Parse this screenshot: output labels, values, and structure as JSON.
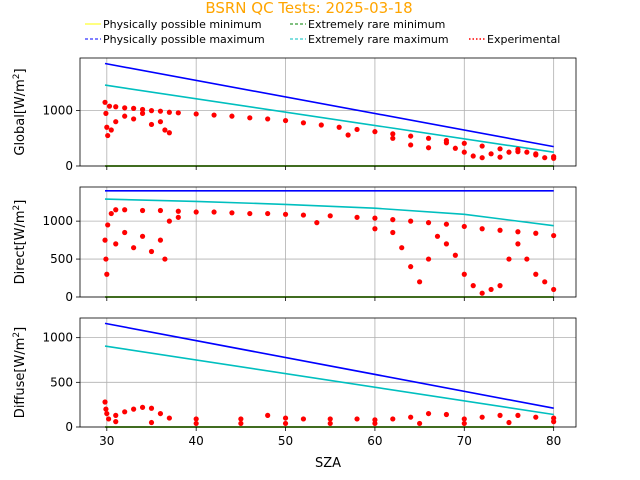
{
  "figure": {
    "title": "BSRN QC Tests: 2025-03-18",
    "title_color": "#FFA500",
    "xlabel": "SZA"
  },
  "legend": [
    {
      "name": "Physically possible minimum",
      "color": "#FFFF00",
      "style": "solid"
    },
    {
      "name": "Extremely rare minimum",
      "color": "#008000",
      "style": "dashed"
    },
    {
      "name": "Physically possible maximum",
      "color": "#0000FF",
      "style": "dashed"
    },
    {
      "name": "Extremely rare maximum",
      "color": "#00BFBF",
      "style": "dashed"
    },
    {
      "name": "Experimental",
      "color": "#FF0000",
      "style": "dotted"
    }
  ],
  "chart_data": [
    {
      "type": "line",
      "ylabel_text": "Global",
      "ylabel_unit": "[W/m",
      "ylabel_sup": "2",
      "ylabel_end": "]",
      "xlim": [
        27,
        82.5
      ],
      "ylim": [
        0,
        1950
      ],
      "yticks": [
        0,
        1000
      ],
      "xticks": [
        30,
        40,
        50,
        60,
        70,
        80
      ],
      "grid": true,
      "series": [
        {
          "name": "Physically possible minimum",
          "color": "#FFFF00",
          "points": [
            [
              29.8,
              0
            ],
            [
              80,
              0
            ]
          ]
        },
        {
          "name": "Extremely rare minimum",
          "color": "#008000",
          "points": [
            [
              29.8,
              0
            ],
            [
              80,
              0
            ]
          ]
        },
        {
          "name": "Physically possible maximum",
          "color": "#0000FF",
          "points": [
            [
              29.8,
              1850
            ],
            [
              80,
              350
            ]
          ]
        },
        {
          "name": "Extremely rare maximum",
          "color": "#00BFBF",
          "points": [
            [
              29.8,
              1460
            ],
            [
              80,
              250
            ]
          ]
        },
        {
          "name": "Experimental",
          "color": "#FF0000",
          "kind": "scatter",
          "points": [
            [
              29.8,
              1150
            ],
            [
              29.9,
              950
            ],
            [
              30.0,
              700
            ],
            [
              30.1,
              550
            ],
            [
              30.3,
              1080
            ],
            [
              31,
              1070
            ],
            [
              32,
              1050
            ],
            [
              33,
              1040
            ],
            [
              34,
              1020
            ],
            [
              35,
              1000
            ],
            [
              36,
              990
            ],
            [
              37,
              970
            ],
            [
              38,
              960
            ],
            [
              40,
              940
            ],
            [
              42,
              920
            ],
            [
              44,
              900
            ],
            [
              46,
              870
            ],
            [
              48,
              850
            ],
            [
              50,
              820
            ],
            [
              52,
              780
            ],
            [
              54,
              740
            ],
            [
              56,
              700
            ],
            [
              58,
              660
            ],
            [
              60,
              620
            ],
            [
              62,
              580
            ],
            [
              64,
              540
            ],
            [
              66,
              500
            ],
            [
              68,
              460
            ],
            [
              70,
              410
            ],
            [
              72,
              360
            ],
            [
              74,
              310
            ],
            [
              76,
              260
            ],
            [
              78,
              220
            ],
            [
              80,
              170
            ],
            [
              30.5,
              650
            ],
            [
              31,
              800
            ],
            [
              32,
              900
            ],
            [
              33,
              850
            ],
            [
              34,
              950
            ],
            [
              35,
              750
            ],
            [
              36,
              800
            ],
            [
              36.5,
              650
            ],
            [
              37,
              600
            ],
            [
              57,
              560
            ],
            [
              62,
              500
            ],
            [
              64,
              380
            ],
            [
              66,
              330
            ],
            [
              68,
              420
            ],
            [
              69,
              320
            ],
            [
              70,
              250
            ],
            [
              71,
              180
            ],
            [
              72,
              150
            ],
            [
              73,
              220
            ],
            [
              74,
              160
            ],
            [
              75,
              250
            ],
            [
              76,
              300
            ],
            [
              77,
              250
            ],
            [
              78,
              200
            ],
            [
              79,
              150
            ],
            [
              80,
              140
            ]
          ]
        }
      ]
    },
    {
      "type": "line",
      "ylabel_text": "Direct",
      "ylabel_unit": "[W/m",
      "ylabel_sup": "2",
      "ylabel_end": "]",
      "xlim": [
        27,
        82.5
      ],
      "ylim": [
        0,
        1450
      ],
      "yticks": [
        0,
        500,
        1000
      ],
      "xticks": [
        30,
        40,
        50,
        60,
        70,
        80
      ],
      "grid": true,
      "series": [
        {
          "name": "Physically possible minimum",
          "color": "#FFFF00",
          "points": [
            [
              29.8,
              0
            ],
            [
              80,
              0
            ]
          ]
        },
        {
          "name": "Extremely rare minimum",
          "color": "#008000",
          "points": [
            [
              29.8,
              0
            ],
            [
              80,
              0
            ]
          ]
        },
        {
          "name": "Physically possible maximum",
          "color": "#0000FF",
          "points": [
            [
              29.8,
              1400
            ],
            [
              80,
              1400
            ]
          ]
        },
        {
          "name": "Extremely rare maximum",
          "color": "#00BFBF",
          "points": [
            [
              29.8,
              1290
            ],
            [
              40,
              1260
            ],
            [
              50,
              1220
            ],
            [
              60,
              1170
            ],
            [
              70,
              1090
            ],
            [
              80,
              940
            ]
          ]
        },
        {
          "name": "Experimental",
          "color": "#FF0000",
          "kind": "scatter",
          "points": [
            [
              29.8,
              750
            ],
            [
              29.9,
              500
            ],
            [
              30.0,
              300
            ],
            [
              30.1,
              950
            ],
            [
              30.5,
              1100
            ],
            [
              31,
              1150
            ],
            [
              32,
              1150
            ],
            [
              34,
              1140
            ],
            [
              36,
              1140
            ],
            [
              38,
              1130
            ],
            [
              40,
              1120
            ],
            [
              42,
              1120
            ],
            [
              44,
              1110
            ],
            [
              46,
              1100
            ],
            [
              48,
              1100
            ],
            [
              50,
              1090
            ],
            [
              52,
              1080
            ],
            [
              53.5,
              980
            ],
            [
              55,
              1070
            ],
            [
              58,
              1050
            ],
            [
              60,
              1040
            ],
            [
              62,
              1020
            ],
            [
              64,
              1000
            ],
            [
              66,
              980
            ],
            [
              68,
              960
            ],
            [
              70,
              930
            ],
            [
              72,
              900
            ],
            [
              74,
              880
            ],
            [
              76,
              860
            ],
            [
              78,
              840
            ],
            [
              80,
              810
            ],
            [
              31,
              700
            ],
            [
              32,
              850
            ],
            [
              33,
              650
            ],
            [
              34,
              800
            ],
            [
              35,
              600
            ],
            [
              36,
              750
            ],
            [
              36.5,
              500
            ],
            [
              37,
              1000
            ],
            [
              38,
              1050
            ],
            [
              60,
              900
            ],
            [
              62,
              850
            ],
            [
              63,
              650
            ],
            [
              64,
              400
            ],
            [
              65,
              200
            ],
            [
              66,
              500
            ],
            [
              67,
              800
            ],
            [
              68,
              700
            ],
            [
              69,
              550
            ],
            [
              70,
              300
            ],
            [
              71,
              150
            ],
            [
              72,
              50
            ],
            [
              73,
              100
            ],
            [
              74,
              150
            ],
            [
              75,
              500
            ],
            [
              76,
              700
            ],
            [
              77,
              500
            ],
            [
              78,
              300
            ],
            [
              79,
              200
            ],
            [
              80,
              100
            ]
          ]
        }
      ]
    },
    {
      "type": "line",
      "ylabel_text": "Diffuse",
      "ylabel_unit": "[W/m",
      "ylabel_sup": "2",
      "ylabel_end": "]",
      "xlim": [
        27,
        82.5
      ],
      "ylim": [
        0,
        1220
      ],
      "yticks": [
        0,
        500,
        1000
      ],
      "xticks": [
        30,
        40,
        50,
        60,
        70,
        80
      ],
      "grid": true,
      "series": [
        {
          "name": "Physically possible minimum",
          "color": "#FFFF00",
          "points": [
            [
              29.8,
              0
            ],
            [
              80,
              0
            ]
          ]
        },
        {
          "name": "Extremely rare minimum",
          "color": "#008000",
          "points": [
            [
              29.8,
              0
            ],
            [
              80,
              0
            ]
          ]
        },
        {
          "name": "Physically possible maximum",
          "color": "#0000FF",
          "points": [
            [
              29.8,
              1160
            ],
            [
              80,
              210
            ]
          ]
        },
        {
          "name": "Extremely rare maximum",
          "color": "#00BFBF",
          "points": [
            [
              29.8,
              905
            ],
            [
              80,
              140
            ]
          ]
        },
        {
          "name": "Experimental",
          "color": "#FF0000",
          "kind": "scatter",
          "points": [
            [
              29.8,
              280
            ],
            [
              29.9,
              200
            ],
            [
              30,
              150
            ],
            [
              30.2,
              90
            ],
            [
              31,
              130
            ],
            [
              32,
              170
            ],
            [
              33,
              200
            ],
            [
              34,
              220
            ],
            [
              35,
              210
            ],
            [
              36,
              150
            ],
            [
              37,
              100
            ],
            [
              40,
              90
            ],
            [
              45,
              90
            ],
            [
              48,
              130
            ],
            [
              50,
              100
            ],
            [
              52,
              90
            ],
            [
              55,
              90
            ],
            [
              58,
              90
            ],
            [
              60,
              80
            ],
            [
              62,
              90
            ],
            [
              64,
              110
            ],
            [
              66,
              150
            ],
            [
              68,
              140
            ],
            [
              70,
              90
            ],
            [
              72,
              110
            ],
            [
              74,
              130
            ],
            [
              76,
              130
            ],
            [
              78,
              110
            ],
            [
              80,
              100
            ],
            [
              31,
              60
            ],
            [
              35,
              50
            ],
            [
              40,
              40
            ],
            [
              45,
              40
            ],
            [
              50,
              40
            ],
            [
              55,
              40
            ],
            [
              60,
              40
            ],
            [
              65,
              40
            ],
            [
              70,
              40
            ],
            [
              75,
              50
            ],
            [
              80,
              60
            ]
          ]
        }
      ]
    }
  ]
}
